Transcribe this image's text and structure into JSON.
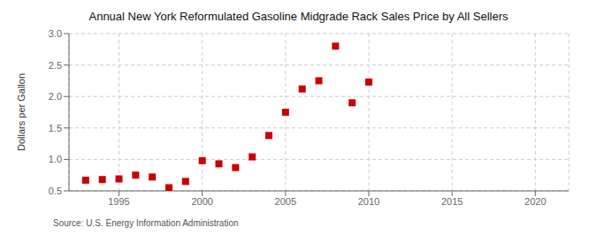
{
  "chart_data": {
    "type": "scatter",
    "title": "Annual New York Reformulated Gasoline Midgrade Rack Sales Price by All Sellers",
    "y_label": "Dollars per Gallon",
    "annotations": [
      "Source: U.S. Energy Information Administration"
    ],
    "x": [
      1993,
      1994,
      1995,
      1996,
      1997,
      1998,
      1999,
      2000,
      2001,
      2002,
      2003,
      2004,
      2005,
      2006,
      2007,
      2008,
      2009,
      2010
    ],
    "values": [
      0.67,
      0.68,
      0.69,
      0.75,
      0.72,
      0.55,
      0.65,
      0.98,
      0.93,
      0.87,
      1.04,
      1.38,
      1.75,
      2.12,
      2.25,
      2.8,
      1.9,
      2.23
    ],
    "color": "#cc0000",
    "marker": "square",
    "xlim": [
      1992,
      2022
    ],
    "ylim": [
      0.5,
      3.0
    ],
    "xticks": [
      1995,
      2000,
      2005,
      2010,
      2015,
      2020
    ],
    "yticks": [
      0.5,
      {
        "value": 1,
        "label": "1.0"
      },
      1.5,
      {
        "value": 2,
        "label": "2.0"
      },
      2.5,
      {
        "value": 3,
        "label": "3.0"
      }
    ],
    "grid": true
  }
}
